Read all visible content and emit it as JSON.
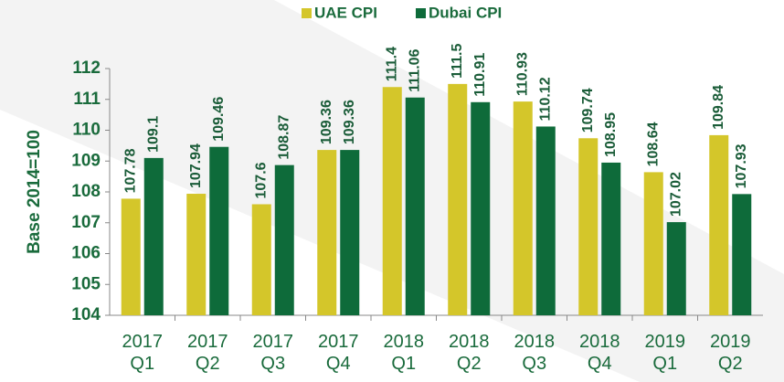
{
  "chart_data": {
    "type": "bar",
    "y_label": "Base 2014=100",
    "categories": [
      "2017 Q1",
      "2017 Q2",
      "2017 Q3",
      "2017 Q4",
      "2018 Q1",
      "2018 Q2",
      "2018 Q3",
      "2018 Q4",
      "2019 Q1",
      "2019 Q2"
    ],
    "series": [
      {
        "name": "UAE CPI",
        "color": "#d4c62a",
        "values": [
          107.78,
          107.94,
          107.6,
          109.36,
          111.4,
          111.5,
          110.93,
          109.74,
          108.64,
          109.84
        ]
      },
      {
        "name": "Dubai CPI",
        "color": "#0e6b3a",
        "values": [
          109.1,
          109.46,
          108.87,
          109.36,
          111.06,
          110.91,
          110.12,
          108.95,
          107.02,
          107.93
        ]
      }
    ],
    "ylim": [
      104,
      112
    ],
    "yticks": [
      104,
      105,
      106,
      107,
      108,
      109,
      110,
      111,
      112
    ],
    "legend": "top",
    "grid": false
  }
}
